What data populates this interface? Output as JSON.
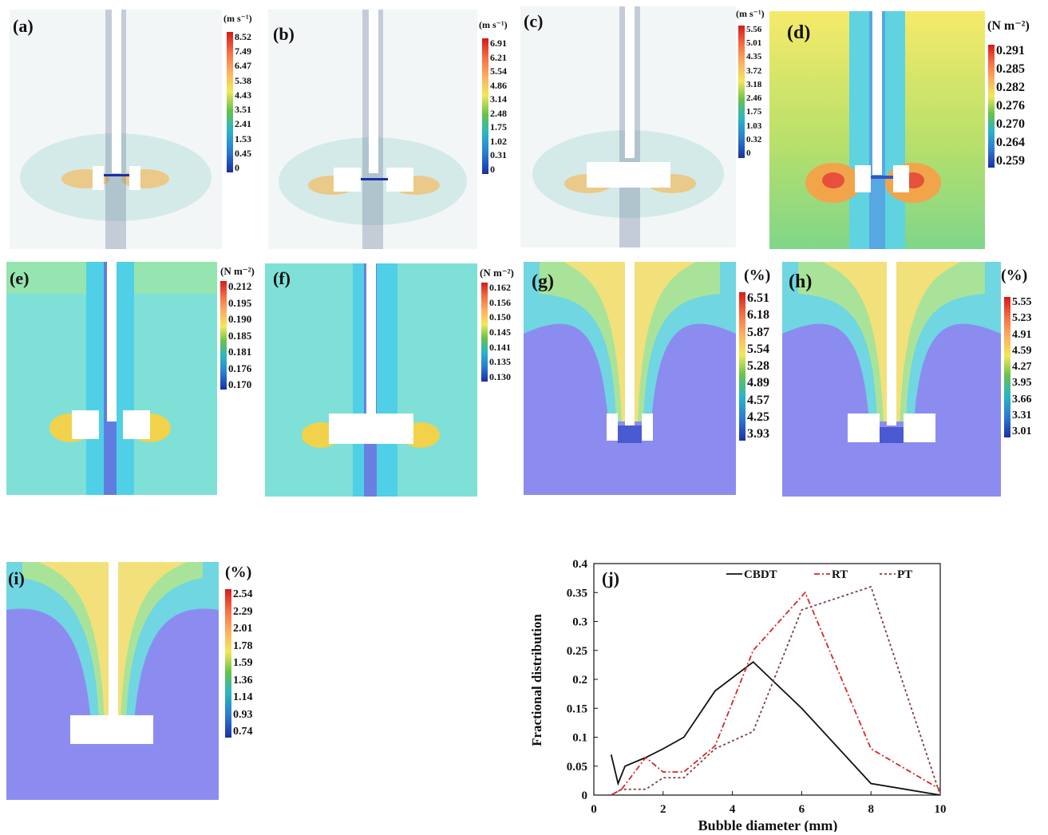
{
  "panels": [
    {
      "id": "a",
      "label": "(a)",
      "unit": "(m s⁻¹)",
      "ticks": [
        "8.52",
        "7.49",
        "6.47",
        "5.38",
        "4.43",
        "3.51",
        "2.41",
        "1.53",
        "0.45",
        "0"
      ],
      "kind": "vector"
    },
    {
      "id": "b",
      "label": "(b)",
      "unit": "(m s⁻¹)",
      "ticks": [
        "6.91",
        "6.21",
        "5.54",
        "4.86",
        "3.14",
        "2.48",
        "1.75",
        "1.02",
        "0.31",
        "0"
      ],
      "kind": "vector"
    },
    {
      "id": "c",
      "label": "(c)",
      "unit": "(m s⁻¹)",
      "ticks": [
        "5.56",
        "5.01",
        "4.35",
        "3.72",
        "3.18",
        "2.46",
        "1.75",
        "1.03",
        "0.32",
        "0"
      ],
      "kind": "vector"
    },
    {
      "id": "d",
      "label": "(d)",
      "unit": "(N m⁻²)",
      "ticks": [
        "0.291",
        "0.285",
        "0.282",
        "0.276",
        "0.270",
        "0.264",
        "0.259"
      ],
      "kind": "stress"
    },
    {
      "id": "e",
      "label": "(e)",
      "unit": "(N m⁻²)",
      "ticks": [
        "0.212",
        "0.195",
        "0.190",
        "0.185",
        "0.181",
        "0.176",
        "0.170"
      ],
      "kind": "stress"
    },
    {
      "id": "f",
      "label": "(f)",
      "unit": "(N m⁻²)",
      "ticks": [
        "0.162",
        "0.156",
        "0.150",
        "0.145",
        "0.141",
        "0.135",
        "0.130"
      ],
      "kind": "stress"
    },
    {
      "id": "g",
      "label": "(g)",
      "unit": "(%)",
      "ticks": [
        "6.51",
        "6.18",
        "5.87",
        "5.54",
        "5.28",
        "4.89",
        "4.57",
        "4.25",
        "3.93"
      ],
      "kind": "gas"
    },
    {
      "id": "h",
      "label": "(h)",
      "unit": "(%)",
      "ticks": [
        "5.55",
        "5.23",
        "4.91",
        "4.59",
        "4.27",
        "3.95",
        "3.66",
        "3.31",
        "3.01"
      ],
      "kind": "gas"
    },
    {
      "id": "i",
      "label": "(i)",
      "unit": "(%)",
      "ticks": [
        "2.54",
        "2.29",
        "2.01",
        "1.78",
        "1.59",
        "1.36",
        "1.14",
        "0.93",
        "0.74"
      ],
      "kind": "gas"
    }
  ],
  "chart_data": {
    "type": "line",
    "panel_label": "(j)",
    "xlabel": "Bubble diameter (mm)",
    "ylabel": "Fractional distribution",
    "xlim": [
      0,
      10
    ],
    "ylim": [
      0,
      0.4
    ],
    "xticks": [
      "0",
      "2",
      "4",
      "6",
      "8",
      "10"
    ],
    "yticks": [
      "0",
      "0.05",
      "0.1",
      "0.15",
      "0.2",
      "0.25",
      "0.3",
      "0.35",
      "0.4"
    ],
    "legend_position": "top",
    "series": [
      {
        "name": "CBDT",
        "style": "solid",
        "color": "#111111",
        "x": [
          0.5,
          0.7,
          0.9,
          1.5,
          2.0,
          2.6,
          3.5,
          4.6,
          6.0,
          8.0,
          10.0
        ],
        "y": [
          0.07,
          0.02,
          0.05,
          0.065,
          0.08,
          0.1,
          0.18,
          0.23,
          0.15,
          0.02,
          0.0
        ]
      },
      {
        "name": "RT",
        "style": "dashdot",
        "color": "#d62728",
        "x": [
          0.5,
          0.8,
          1.5,
          2.0,
          2.6,
          3.5,
          4.6,
          6.1,
          8.0,
          10.0
        ],
        "y": [
          0.0,
          0.01,
          0.065,
          0.04,
          0.04,
          0.085,
          0.25,
          0.35,
          0.08,
          0.01
        ]
      },
      {
        "name": "PT",
        "style": "dotted",
        "color": "#7f3f3f",
        "x": [
          0.5,
          0.8,
          1.5,
          2.0,
          2.6,
          3.5,
          4.6,
          6.0,
          8.0,
          10.0
        ],
        "y": [
          0.0,
          0.01,
          0.01,
          0.03,
          0.03,
          0.08,
          0.11,
          0.32,
          0.36,
          0.0
        ]
      }
    ]
  }
}
